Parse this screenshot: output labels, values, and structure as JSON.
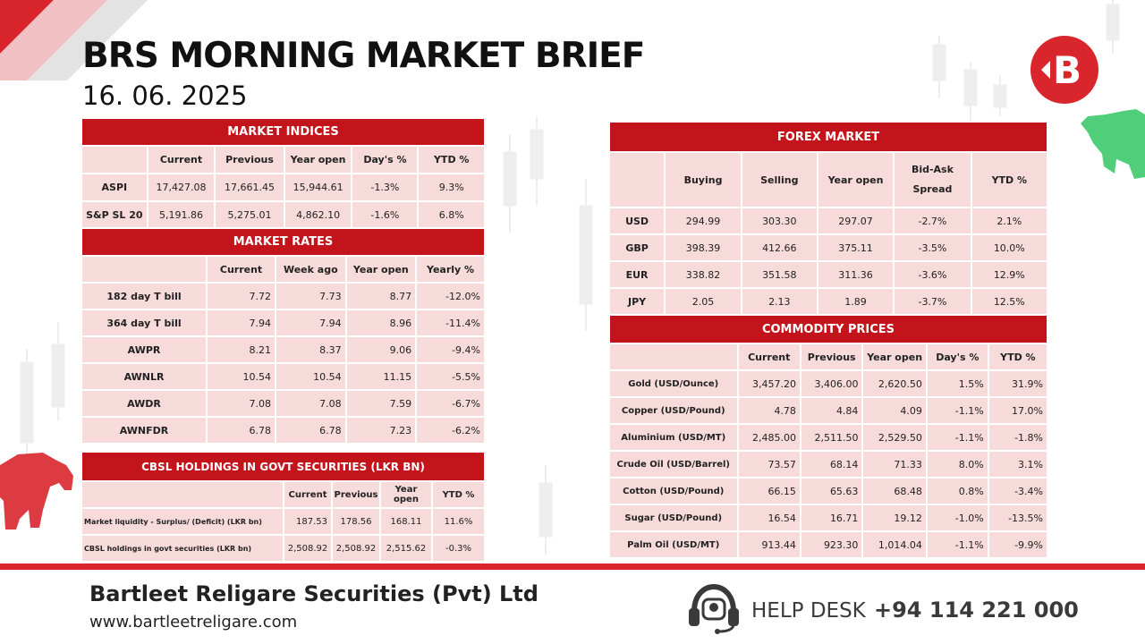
{
  "header": {
    "title": "BRS MORNING MARKET BRIEF",
    "date": "16. 06. 2025",
    "logo_letter": "B"
  },
  "colors": {
    "accent": "#c4141b",
    "cell_bg": "#f7dada",
    "bull": "#3ec96a",
    "bear": "#d9262d"
  },
  "market_indices": {
    "title": "MARKET INDICES",
    "columns": [
      "Current",
      "Previous",
      "Year open",
      "Day's %",
      "YTD %"
    ],
    "rows": [
      {
        "label": "ASPI",
        "values": [
          "17,427.08",
          "17,661.45",
          "15,944.61",
          "-1.3%",
          "9.3%"
        ]
      },
      {
        "label": "S&P SL 20",
        "values": [
          "5,191.86",
          "5,275.01",
          "4,862.10",
          "-1.6%",
          "6.8%"
        ]
      }
    ]
  },
  "market_rates": {
    "title": "MARKET RATES",
    "columns": [
      "Current",
      "Week ago",
      "Year open",
      "Yearly %"
    ],
    "rows": [
      {
        "label": "182 day T bill",
        "values": [
          "7.72",
          "7.73",
          "8.77",
          "-12.0%"
        ]
      },
      {
        "label": "364 day T bill",
        "values": [
          "7.94",
          "7.94",
          "8.96",
          "-11.4%"
        ]
      },
      {
        "label": "AWPR",
        "values": [
          "8.21",
          "8.37",
          "9.06",
          "-9.4%"
        ]
      },
      {
        "label": "AWNLR",
        "values": [
          "10.54",
          "10.54",
          "11.15",
          "-5.5%"
        ]
      },
      {
        "label": "AWDR",
        "values": [
          "7.08",
          "7.08",
          "7.59",
          "-6.7%"
        ]
      },
      {
        "label": "AWNFDR",
        "values": [
          "6.78",
          "6.78",
          "7.23",
          "-6.2%"
        ]
      }
    ]
  },
  "cbsl_holdings": {
    "title": "CBSL HOLDINGS IN GOVT SECURITIES (LKR BN)",
    "columns": [
      "Current",
      "Previous",
      "Year open",
      "YTD %"
    ],
    "rows": [
      {
        "label": "Market liquidity - Surplus/ (Deficit) (LKR bn)",
        "values": [
          "187.53",
          "178.56",
          "168.11",
          "11.6%"
        ]
      },
      {
        "label": "CBSL holdings in govt securities (LKR bn)",
        "values": [
          "2,508.92",
          "2,508.92",
          "2,515.62",
          "-0.3%"
        ]
      }
    ]
  },
  "forex_market": {
    "title": "FOREX MARKET",
    "columns": [
      "Buying",
      "Selling",
      "Year open",
      "Bid-Ask Spread",
      "YTD %"
    ],
    "rows": [
      {
        "label": "USD",
        "values": [
          "294.99",
          "303.30",
          "297.07",
          "-2.7%",
          "2.1%"
        ]
      },
      {
        "label": "GBP",
        "values": [
          "398.39",
          "412.66",
          "375.11",
          "-3.5%",
          "10.0%"
        ]
      },
      {
        "label": "EUR",
        "values": [
          "338.82",
          "351.58",
          "311.36",
          "-3.6%",
          "12.9%"
        ]
      },
      {
        "label": "JPY",
        "values": [
          "2.05",
          "2.13",
          "1.89",
          "-3.7%",
          "12.5%"
        ]
      }
    ]
  },
  "commodity_prices": {
    "title": "COMMODITY PRICES",
    "columns": [
      "Current",
      "Previous",
      "Year open",
      "Day's %",
      "YTD %"
    ],
    "rows": [
      {
        "label": "Gold (USD/Ounce)",
        "values": [
          "3,457.20",
          "3,406.00",
          "2,620.50",
          "1.5%",
          "31.9%"
        ]
      },
      {
        "label": "Copper (USD/Pound)",
        "values": [
          "4.78",
          "4.84",
          "4.09",
          "-1.1%",
          "17.0%"
        ]
      },
      {
        "label": "Aluminium (USD/MT)",
        "values": [
          "2,485.00",
          "2,511.50",
          "2,529.50",
          "-1.1%",
          "-1.8%"
        ]
      },
      {
        "label": "Crude Oil (USD/Barrel)",
        "values": [
          "73.57",
          "68.14",
          "71.33",
          "8.0%",
          "3.1%"
        ]
      },
      {
        "label": "Cotton (USD/Pound)",
        "values": [
          "66.15",
          "65.63",
          "68.48",
          "0.8%",
          "-3.4%"
        ]
      },
      {
        "label": "Sugar (USD/Pound)",
        "values": [
          "16.54",
          "16.71",
          "19.12",
          "-1.0%",
          "-13.5%"
        ]
      },
      {
        "label": "Palm Oil (USD/MT)",
        "values": [
          "913.44",
          "923.30",
          "1,014.04",
          "-1.1%",
          "-9.9%"
        ]
      }
    ]
  },
  "footer": {
    "company": "Bartleet Religare Securities (Pvt) Ltd",
    "website": "www.bartleetreligare.com",
    "helpdesk_label": "HELP DESK",
    "helpdesk_phone": "+94 114 221 000",
    "helpdesk_icon": "headset-icon"
  }
}
